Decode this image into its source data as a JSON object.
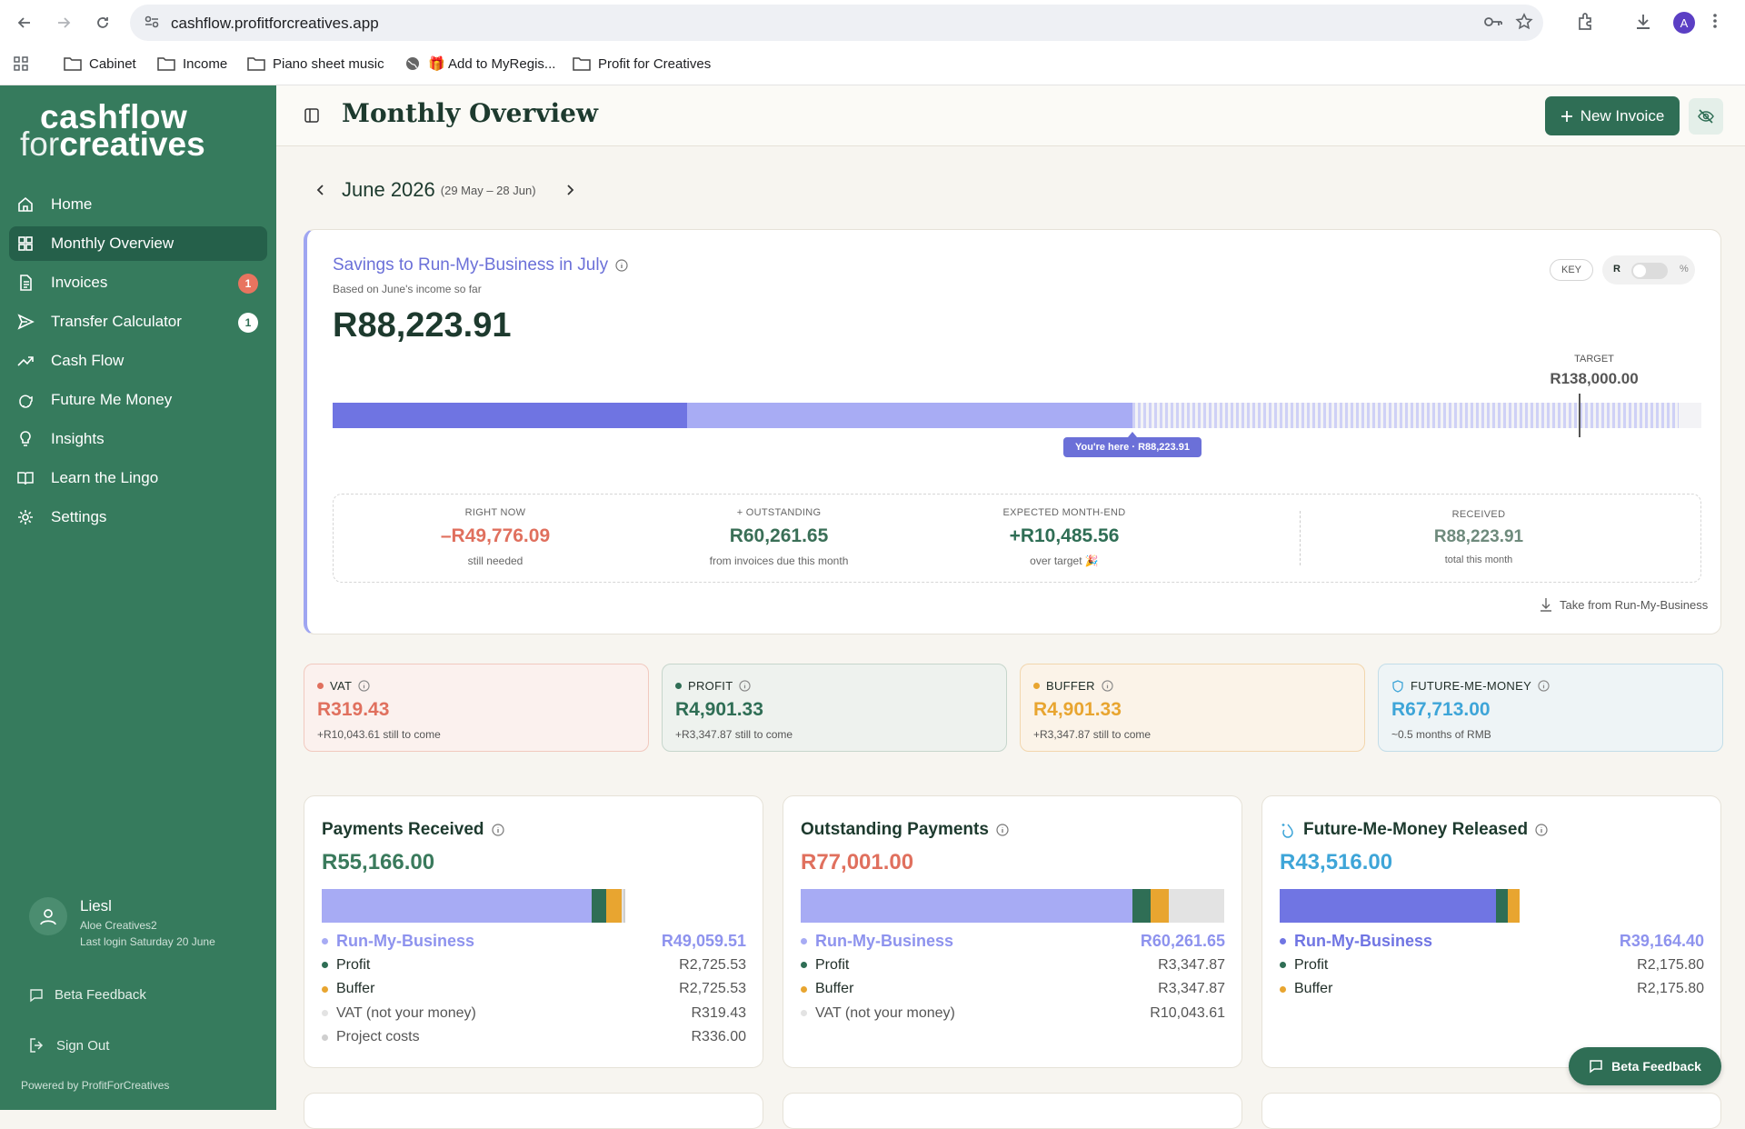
{
  "browser": {
    "url": "cashflow.profitforcreatives.app",
    "bookmarks": [
      "Cabinet",
      "Income",
      "Piano sheet music",
      "🎁 Add to MyRegis...",
      "Profit for Creatives"
    ],
    "profile_initial": "A"
  },
  "sidebar": {
    "logo_line1": "cashflow",
    "logo_line2_a": "for",
    "logo_line2_b": "creatives",
    "items": [
      {
        "label": "Home",
        "icon": "home-icon"
      },
      {
        "label": "Monthly Overview",
        "icon": "grid-icon",
        "active": true
      },
      {
        "label": "Invoices",
        "icon": "document-icon",
        "badge": "1",
        "badge_color": "#e8745f"
      },
      {
        "label": "Transfer Calculator",
        "icon": "send-icon",
        "badge": "1",
        "badge_color": "#ffffff"
      },
      {
        "label": "Cash Flow",
        "icon": "trend-icon"
      },
      {
        "label": "Future Me Money",
        "icon": "piggy-icon"
      },
      {
        "label": "Insights",
        "icon": "lightbulb-icon"
      },
      {
        "label": "Learn the Lingo",
        "icon": "book-icon"
      },
      {
        "label": "Settings",
        "icon": "gear-icon"
      }
    ],
    "user": {
      "name": "Liesl",
      "company": "Aloe Creatives2",
      "last_login": "Last login Saturday 20 June"
    },
    "beta_feedback": "Beta Feedback",
    "sign_out": "Sign Out",
    "powered_by": "Powered by ProfitForCreatives"
  },
  "header": {
    "title": "Monthly Overview",
    "new_invoice": "New Invoice"
  },
  "period": {
    "month": "June 2026",
    "range": "(29 May – 28 Jun)"
  },
  "savings": {
    "title": "Savings to Run-My-Business in July",
    "subtitle": "Based on June's income so far",
    "amount": "R88,223.91",
    "key_label": "KEY",
    "toggle_left": "R",
    "toggle_right": "%",
    "target_label": "TARGET",
    "target_amount": "R138,000.00",
    "you_are_here": "You're here · R88,223.91",
    "progress": {
      "received": 88223.91,
      "target": 138000,
      "expected": 148485.56,
      "max": 151000
    },
    "stats": [
      {
        "label": "RIGHT NOW",
        "value": "–R49,776.09",
        "sub": "still needed",
        "color": "#e0705e"
      },
      {
        "label": "+ OUTSTANDING",
        "value": "R60,261.65",
        "sub": "from invoices due this month",
        "color": "#3a6f57"
      },
      {
        "label": "EXPECTED MONTH-END",
        "value": "+R10,485.56",
        "sub": "over target 🎉",
        "color": "#2f6e55"
      },
      {
        "label": "RECEIVED",
        "value": "R88,223.91",
        "sub": "total this month",
        "color": "#6e8a7c"
      }
    ],
    "take_from": "Take from Run-My-Business"
  },
  "mini_cards": [
    {
      "label": "VAT",
      "value": "R319.43",
      "sub": "+R10,043.61 still to come",
      "color": "#e0705e",
      "bg": "#fbf1ee",
      "border": "#f1c9bf"
    },
    {
      "label": "PROFIT",
      "value": "R4,901.33",
      "sub": "+R3,347.87 still to come",
      "color": "#2f6e55",
      "bg": "#eef2ee",
      "border": "#c6d6cc"
    },
    {
      "label": "BUFFER",
      "value": "R4,901.33",
      "sub": "+R3,347.87 still to come",
      "color": "#e8a530",
      "bg": "#fbf3e8",
      "border": "#f2d6ad"
    },
    {
      "label": "FUTURE-ME-MONEY",
      "value": "R67,713.00",
      "sub": "~0.5 months of RMB",
      "color": "#3ea5d8",
      "bg": "#eef4f6",
      "border": "#c3dde8"
    }
  ],
  "cards": [
    {
      "title": "Payments Received",
      "amount": "R55,166.00",
      "amount_color": "#3a7a5c",
      "rows": [
        {
          "name": "Run-My-Business",
          "value": "R49,059.51",
          "color": "#a7abf4"
        },
        {
          "name": "Profit",
          "value": "R2,725.53",
          "color": "#2f6e55"
        },
        {
          "name": "Buffer",
          "value": "R2,725.53",
          "color": "#e8a530"
        },
        {
          "name": "VAT (not your money)",
          "value": "R319.43",
          "color": "#e3e3e3"
        },
        {
          "name": "Project costs",
          "value": "R336.00",
          "color": "#cfcfcf"
        }
      ],
      "bar": [
        {
          "v": 49059.51,
          "c": "#a7abf4"
        },
        {
          "v": 2725.53,
          "c": "#2f6e55"
        },
        {
          "v": 2725.53,
          "c": "#e8a530"
        },
        {
          "v": 319.43,
          "c": "#e3e3e3"
        },
        {
          "v": 336.0,
          "c": "#cfcfcf"
        }
      ],
      "bar_max": 76500
    },
    {
      "title": "Outstanding Payments",
      "amount": "R77,001.00",
      "amount_color": "#e0705e",
      "rows": [
        {
          "name": "Run-My-Business",
          "value": "R60,261.65",
          "color": "#a7abf4"
        },
        {
          "name": "Profit",
          "value": "R3,347.87",
          "color": "#2f6e55"
        },
        {
          "name": "Buffer",
          "value": "R3,347.87",
          "color": "#e8a530"
        },
        {
          "name": "VAT (not your money)",
          "value": "R10,043.61",
          "color": "#e3e3e3"
        }
      ],
      "bar": [
        {
          "v": 60261.65,
          "c": "#a7abf4"
        },
        {
          "v": 3347.87,
          "c": "#2f6e55"
        },
        {
          "v": 3347.87,
          "c": "#e8a530"
        },
        {
          "v": 10043.61,
          "c": "#e3e3e3"
        }
      ],
      "bar_max": 77001
    },
    {
      "title": "Future-Me-Money Released",
      "amount": "R43,516.00",
      "amount_color": "#3ea5d8",
      "rows": [
        {
          "name": "Run-My-Business",
          "value": "R39,164.40",
          "color": "#7075e3"
        },
        {
          "name": "Profit",
          "value": "R2,175.80",
          "color": "#2f6e55"
        },
        {
          "name": "Buffer",
          "value": "R2,175.80",
          "color": "#e8a530"
        }
      ],
      "bar": [
        {
          "v": 39164.4,
          "c": "#7075e3"
        },
        {
          "v": 2175.8,
          "c": "#2f6e55"
        },
        {
          "v": 2175.8,
          "c": "#e8a530"
        }
      ],
      "bar_max": 76500
    }
  ],
  "floating_feedback": "Beta Feedback"
}
